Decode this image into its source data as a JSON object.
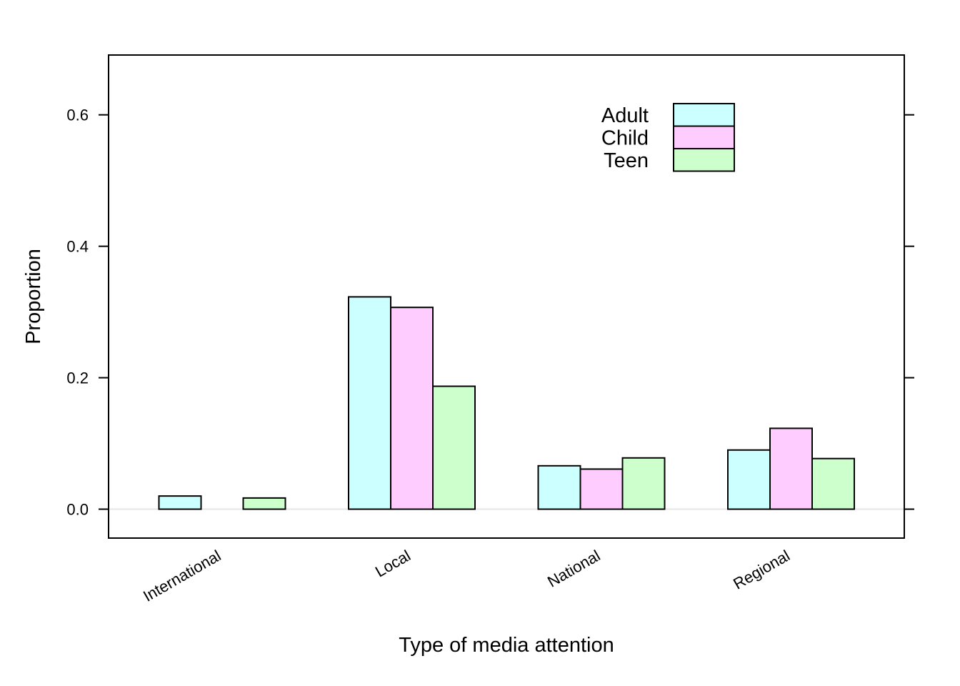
{
  "chart_data": {
    "type": "bar",
    "title": "",
    "xlabel": "Type of media attention",
    "ylabel": "Proportion",
    "categories": [
      "International",
      "Local",
      "National",
      "Regional"
    ],
    "series": [
      {
        "name": "Adult",
        "color": "#ccffff",
        "values": [
          0.02,
          0.323,
          0.066,
          0.09
        ]
      },
      {
        "name": "Child",
        "color": "#ffccff",
        "values": [
          0.0,
          0.307,
          0.061,
          0.123
        ]
      },
      {
        "name": "Teen",
        "color": "#ccffcc",
        "values": [
          0.017,
          0.187,
          0.078,
          0.077
        ]
      }
    ],
    "yticks": [
      0.0,
      0.2,
      0.4,
      0.6
    ],
    "ytick_labels": [
      "0.0",
      "0.2",
      "0.4",
      "0.6"
    ],
    "ylim": [
      -0.044,
      0.691
    ],
    "grid": false,
    "zero_reference_line": true,
    "legend_position": "top-right"
  }
}
